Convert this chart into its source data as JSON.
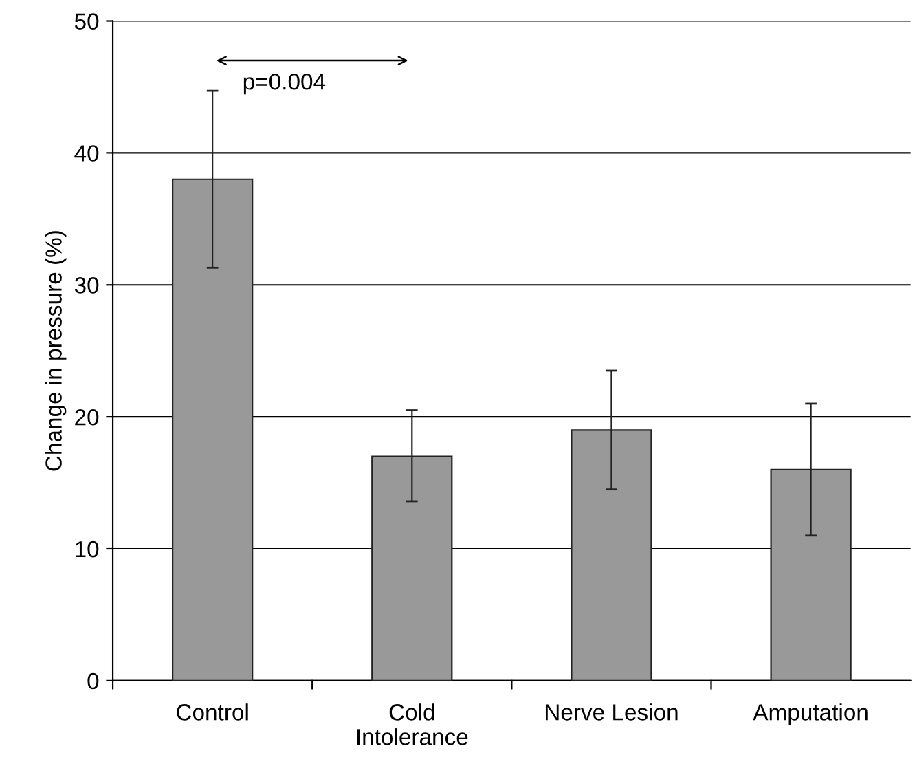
{
  "chart_data": {
    "type": "bar",
    "ylabel": "Change in pressure (%)",
    "categories": [
      "Control",
      "Cold\nIntolerance",
      "Nerve Lesion",
      "Amputation"
    ],
    "values": [
      38,
      17,
      19,
      16
    ],
    "errors": [
      [
        31.3,
        44.7
      ],
      [
        13.6,
        20.5
      ],
      [
        14.5,
        23.5
      ],
      [
        11,
        21
      ]
    ],
    "color": "#999999",
    "ylim": [
      0,
      50
    ],
    "yticks": [
      0,
      10,
      20,
      30,
      40,
      50
    ],
    "grid": "y",
    "annotations": [
      "p=0.004"
    ]
  }
}
